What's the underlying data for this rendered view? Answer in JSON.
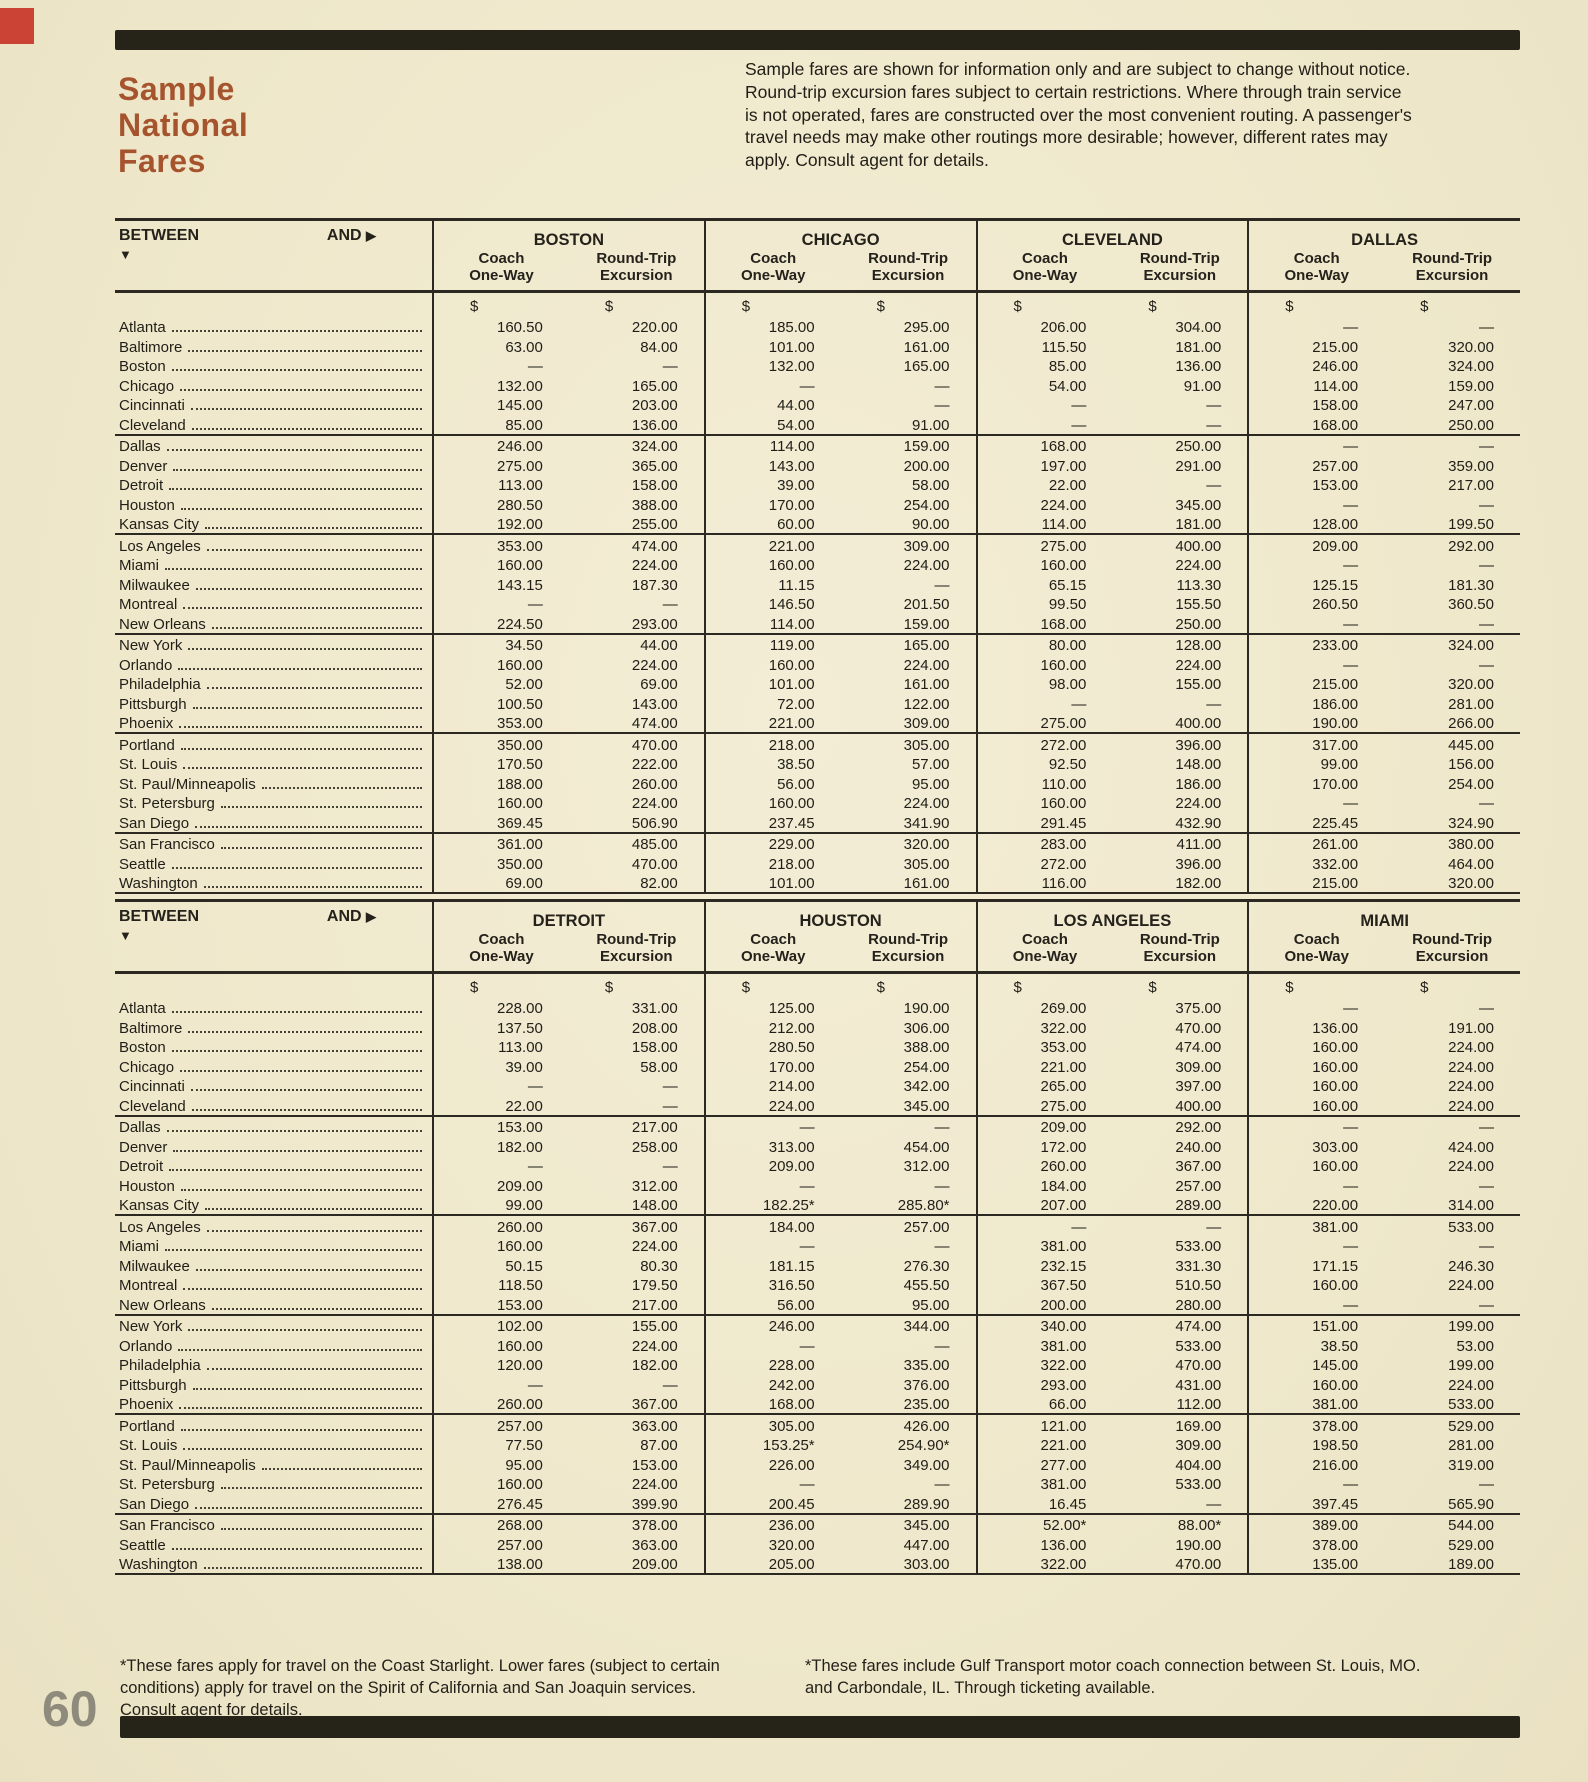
{
  "page": {
    "number": "60",
    "title": "Sample\nNational\nFares",
    "intro": "Sample fares are shown for information only and are subject to change without notice. Round-trip excursion fares subject to certain restrictions. Where through train service is not operated, fares are constructed over the most convenient routing. A passenger's travel needs may make other routings more desirable; however, different rates may apply. Consult agent for details."
  },
  "colors": {
    "accent": "#a5542e",
    "paper": "#f0e9ce",
    "bar": "#262419",
    "page_number": "#8f8b7c",
    "red_mark": "#c5271b"
  },
  "table_header": {
    "between_label": "BETWEEN",
    "and_label": "AND",
    "down_arrow": "▼",
    "right_arrow": "▶",
    "coach_label": "Coach\nOne-Way",
    "roundtrip_label": "Round-Trip\nExcursion",
    "currency": "$"
  },
  "tables": [
    {
      "name": "fare-table-top",
      "cities": [
        "BOSTON",
        "CHICAGO",
        "CLEVELAND",
        "DALLAS"
      ],
      "row_groups": [
        [
          {
            "label": "Atlanta",
            "fares": [
              "160.50",
              "220.00",
              "185.00",
              "295.00",
              "206.00",
              "304.00",
              "—",
              "—"
            ]
          },
          {
            "label": "Baltimore",
            "fares": [
              "63.00",
              "84.00",
              "101.00",
              "161.00",
              "115.50",
              "181.00",
              "215.00",
              "320.00"
            ]
          },
          {
            "label": "Boston",
            "fares": [
              "—",
              "—",
              "132.00",
              "165.00",
              "85.00",
              "136.00",
              "246.00",
              "324.00"
            ]
          },
          {
            "label": "Chicago",
            "fares": [
              "132.00",
              "165.00",
              "—",
              "—",
              "54.00",
              "91.00",
              "114.00",
              "159.00"
            ]
          },
          {
            "label": "Cincinnati",
            "fares": [
              "145.00",
              "203.00",
              "44.00",
              "—",
              "—",
              "—",
              "158.00",
              "247.00"
            ]
          },
          {
            "label": "Cleveland",
            "fares": [
              "85.00",
              "136.00",
              "54.00",
              "91.00",
              "—",
              "—",
              "168.00",
              "250.00"
            ]
          }
        ],
        [
          {
            "label": "Dallas",
            "fares": [
              "246.00",
              "324.00",
              "114.00",
              "159.00",
              "168.00",
              "250.00",
              "—",
              "—"
            ]
          },
          {
            "label": "Denver",
            "fares": [
              "275.00",
              "365.00",
              "143.00",
              "200.00",
              "197.00",
              "291.00",
              "257.00",
              "359.00"
            ]
          },
          {
            "label": "Detroit",
            "fares": [
              "113.00",
              "158.00",
              "39.00",
              "58.00",
              "22.00",
              "—",
              "153.00",
              "217.00"
            ]
          },
          {
            "label": "Houston",
            "fares": [
              "280.50",
              "388.00",
              "170.00",
              "254.00",
              "224.00",
              "345.00",
              "—",
              "—"
            ]
          },
          {
            "label": "Kansas City",
            "fares": [
              "192.00",
              "255.00",
              "60.00",
              "90.00",
              "114.00",
              "181.00",
              "128.00",
              "199.50"
            ]
          }
        ],
        [
          {
            "label": "Los Angeles",
            "fares": [
              "353.00",
              "474.00",
              "221.00",
              "309.00",
              "275.00",
              "400.00",
              "209.00",
              "292.00"
            ]
          },
          {
            "label": "Miami",
            "fares": [
              "160.00",
              "224.00",
              "160.00",
              "224.00",
              "160.00",
              "224.00",
              "—",
              "—"
            ]
          },
          {
            "label": "Milwaukee",
            "fares": [
              "143.15",
              "187.30",
              "11.15",
              "—",
              "65.15",
              "113.30",
              "125.15",
              "181.30"
            ]
          },
          {
            "label": "Montreal",
            "fares": [
              "—",
              "—",
              "146.50",
              "201.50",
              "99.50",
              "155.50",
              "260.50",
              "360.50"
            ]
          },
          {
            "label": "New Orleans",
            "fares": [
              "224.50",
              "293.00",
              "114.00",
              "159.00",
              "168.00",
              "250.00",
              "—",
              "—"
            ]
          }
        ],
        [
          {
            "label": "New York",
            "fares": [
              "34.50",
              "44.00",
              "119.00",
              "165.00",
              "80.00",
              "128.00",
              "233.00",
              "324.00"
            ]
          },
          {
            "label": "Orlando",
            "fares": [
              "160.00",
              "224.00",
              "160.00",
              "224.00",
              "160.00",
              "224.00",
              "—",
              "—"
            ]
          },
          {
            "label": "Philadelphia",
            "fares": [
              "52.00",
              "69.00",
              "101.00",
              "161.00",
              "98.00",
              "155.00",
              "215.00",
              "320.00"
            ]
          },
          {
            "label": "Pittsburgh",
            "fares": [
              "100.50",
              "143.00",
              "72.00",
              "122.00",
              "—",
              "—",
              "186.00",
              "281.00"
            ]
          },
          {
            "label": "Phoenix",
            "fares": [
              "353.00",
              "474.00",
              "221.00",
              "309.00",
              "275.00",
              "400.00",
              "190.00",
              "266.00"
            ]
          }
        ],
        [
          {
            "label": "Portland",
            "fares": [
              "350.00",
              "470.00",
              "218.00",
              "305.00",
              "272.00",
              "396.00",
              "317.00",
              "445.00"
            ]
          },
          {
            "label": "St. Louis",
            "fares": [
              "170.50",
              "222.00",
              "38.50",
              "57.00",
              "92.50",
              "148.00",
              "99.00",
              "156.00"
            ]
          },
          {
            "label": "St. Paul/Minneapolis",
            "fares": [
              "188.00",
              "260.00",
              "56.00",
              "95.00",
              "110.00",
              "186.00",
              "170.00",
              "254.00"
            ]
          },
          {
            "label": "St. Petersburg",
            "fares": [
              "160.00",
              "224.00",
              "160.00",
              "224.00",
              "160.00",
              "224.00",
              "—",
              "—"
            ]
          },
          {
            "label": "San Diego",
            "fares": [
              "369.45",
              "506.90",
              "237.45",
              "341.90",
              "291.45",
              "432.90",
              "225.45",
              "324.90"
            ]
          }
        ],
        [
          {
            "label": "San Francisco",
            "fares": [
              "361.00",
              "485.00",
              "229.00",
              "320.00",
              "283.00",
              "411.00",
              "261.00",
              "380.00"
            ]
          },
          {
            "label": "Seattle",
            "fares": [
              "350.00",
              "470.00",
              "218.00",
              "305.00",
              "272.00",
              "396.00",
              "332.00",
              "464.00"
            ]
          },
          {
            "label": "Washington",
            "fares": [
              "69.00",
              "82.00",
              "101.00",
              "161.00",
              "116.00",
              "182.00",
              "215.00",
              "320.00"
            ]
          }
        ]
      ]
    },
    {
      "name": "fare-table-bottom",
      "cities": [
        "DETROIT",
        "HOUSTON",
        "LOS ANGELES",
        "MIAMI"
      ],
      "row_groups": [
        [
          {
            "label": "Atlanta",
            "fares": [
              "228.00",
              "331.00",
              "125.00",
              "190.00",
              "269.00",
              "375.00",
              "—",
              "—"
            ]
          },
          {
            "label": "Baltimore",
            "fares": [
              "137.50",
              "208.00",
              "212.00",
              "306.00",
              "322.00",
              "470.00",
              "136.00",
              "191.00"
            ]
          },
          {
            "label": "Boston",
            "fares": [
              "113.00",
              "158.00",
              "280.50",
              "388.00",
              "353.00",
              "474.00",
              "160.00",
              "224.00"
            ]
          },
          {
            "label": "Chicago",
            "fares": [
              "39.00",
              "58.00",
              "170.00",
              "254.00",
              "221.00",
              "309.00",
              "160.00",
              "224.00"
            ]
          },
          {
            "label": "Cincinnati",
            "fares": [
              "—",
              "—",
              "214.00",
              "342.00",
              "265.00",
              "397.00",
              "160.00",
              "224.00"
            ]
          },
          {
            "label": "Cleveland",
            "fares": [
              "22.00",
              "—",
              "224.00",
              "345.00",
              "275.00",
              "400.00",
              "160.00",
              "224.00"
            ]
          }
        ],
        [
          {
            "label": "Dallas",
            "fares": [
              "153.00",
              "217.00",
              "—",
              "—",
              "209.00",
              "292.00",
              "—",
              "—"
            ]
          },
          {
            "label": "Denver",
            "fares": [
              "182.00",
              "258.00",
              "313.00",
              "454.00",
              "172.00",
              "240.00",
              "303.00",
              "424.00"
            ]
          },
          {
            "label": "Detroit",
            "fares": [
              "—",
              "—",
              "209.00",
              "312.00",
              "260.00",
              "367.00",
              "160.00",
              "224.00"
            ]
          },
          {
            "label": "Houston",
            "fares": [
              "209.00",
              "312.00",
              "—",
              "—",
              "184.00",
              "257.00",
              "—",
              "—"
            ]
          },
          {
            "label": "Kansas City",
            "fares": [
              "99.00",
              "148.00",
              "182.25*",
              "285.80*",
              "207.00",
              "289.00",
              "220.00",
              "314.00"
            ]
          }
        ],
        [
          {
            "label": "Los Angeles",
            "fares": [
              "260.00",
              "367.00",
              "184.00",
              "257.00",
              "—",
              "—",
              "381.00",
              "533.00"
            ]
          },
          {
            "label": "Miami",
            "fares": [
              "160.00",
              "224.00",
              "—",
              "—",
              "381.00",
              "533.00",
              "—",
              "—"
            ]
          },
          {
            "label": "Milwaukee",
            "fares": [
              "50.15",
              "80.30",
              "181.15",
              "276.30",
              "232.15",
              "331.30",
              "171.15",
              "246.30"
            ]
          },
          {
            "label": "Montreal",
            "fares": [
              "118.50",
              "179.50",
              "316.50",
              "455.50",
              "367.50",
              "510.50",
              "160.00",
              "224.00"
            ]
          },
          {
            "label": "New Orleans",
            "fares": [
              "153.00",
              "217.00",
              "56.00",
              "95.00",
              "200.00",
              "280.00",
              "—",
              "—"
            ]
          }
        ],
        [
          {
            "label": "New York",
            "fares": [
              "102.00",
              "155.00",
              "246.00",
              "344.00",
              "340.00",
              "474.00",
              "151.00",
              "199.00"
            ]
          },
          {
            "label": "Orlando",
            "fares": [
              "160.00",
              "224.00",
              "—",
              "—",
              "381.00",
              "533.00",
              "38.50",
              "53.00"
            ]
          },
          {
            "label": "Philadelphia",
            "fares": [
              "120.00",
              "182.00",
              "228.00",
              "335.00",
              "322.00",
              "470.00",
              "145.00",
              "199.00"
            ]
          },
          {
            "label": "Pittsburgh",
            "fares": [
              "—",
              "—",
              "242.00",
              "376.00",
              "293.00",
              "431.00",
              "160.00",
              "224.00"
            ]
          },
          {
            "label": "Phoenix",
            "fares": [
              "260.00",
              "367.00",
              "168.00",
              "235.00",
              "66.00",
              "112.00",
              "381.00",
              "533.00"
            ]
          }
        ],
        [
          {
            "label": "Portland",
            "fares": [
              "257.00",
              "363.00",
              "305.00",
              "426.00",
              "121.00",
              "169.00",
              "378.00",
              "529.00"
            ]
          },
          {
            "label": "St. Louis",
            "fares": [
              "77.50",
              "87.00",
              "153.25*",
              "254.90*",
              "221.00",
              "309.00",
              "198.50",
              "281.00"
            ]
          },
          {
            "label": "St. Paul/Minneapolis",
            "fares": [
              "95.00",
              "153.00",
              "226.00",
              "349.00",
              "277.00",
              "404.00",
              "216.00",
              "319.00"
            ]
          },
          {
            "label": "St. Petersburg",
            "fares": [
              "160.00",
              "224.00",
              "—",
              "—",
              "381.00",
              "533.00",
              "—",
              "—"
            ]
          },
          {
            "label": "San Diego",
            "fares": [
              "276.45",
              "399.90",
              "200.45",
              "289.90",
              "16.45",
              "—",
              "397.45",
              "565.90"
            ]
          }
        ],
        [
          {
            "label": "San Francisco",
            "fares": [
              "268.00",
              "378.00",
              "236.00",
              "345.00",
              "52.00*",
              "88.00*",
              "389.00",
              "544.00"
            ]
          },
          {
            "label": "Seattle",
            "fares": [
              "257.00",
              "363.00",
              "320.00",
              "447.00",
              "136.00",
              "190.00",
              "378.00",
              "529.00"
            ]
          },
          {
            "label": "Washington",
            "fares": [
              "138.00",
              "209.00",
              "205.00",
              "303.00",
              "322.00",
              "470.00",
              "135.00",
              "189.00"
            ]
          }
        ]
      ]
    }
  ],
  "footnotes": {
    "left": "*These fares apply for travel on the Coast Starlight. Lower fares (subject to certain conditions) apply for travel on the Spirit of California and San Joaquin services. Consult agent for details.",
    "right": "*These fares include Gulf Transport motor coach connection between St. Louis, MO. and Carbondale, IL. Through ticketing available."
  }
}
